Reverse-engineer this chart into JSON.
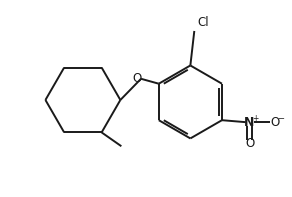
{
  "bg_color": "#ffffff",
  "line_color": "#1a1a1a",
  "line_width": 1.4,
  "font_size": 8.5,
  "cl_label": "Cl",
  "o_label": "O",
  "n_label": "N",
  "o_bottom_label": "O",
  "o_right_label": "O"
}
